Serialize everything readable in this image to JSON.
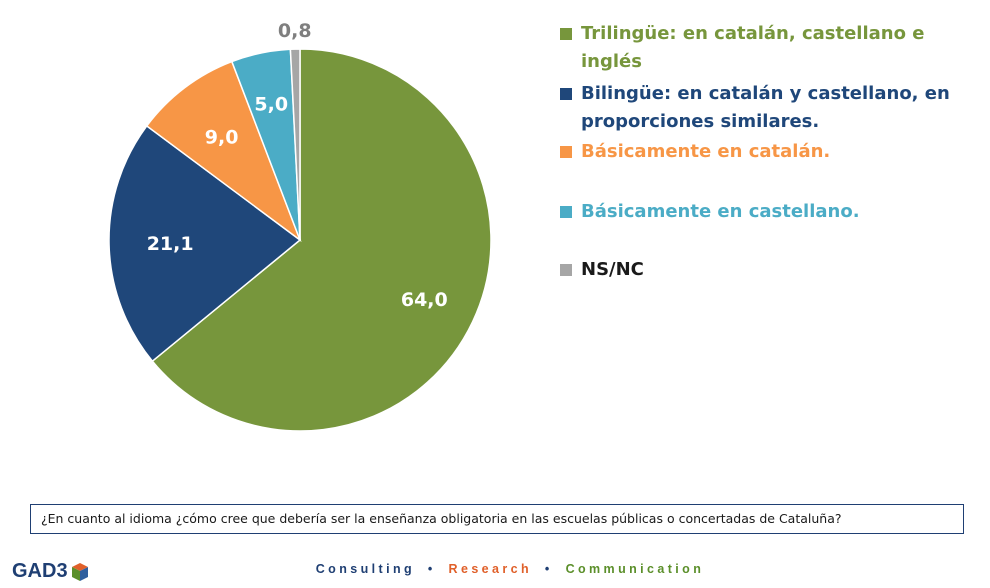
{
  "chart_data": {
    "type": "pie",
    "title": "",
    "categories": [
      "Trilingüe: en catalán, castellano e inglés",
      "Bilingüe: en catalán y castellano, en proporciones similares.",
      "Básicamente en catalán.",
      "Básicamente en castellano.",
      "NS/NC"
    ],
    "values": [
      64.0,
      21.1,
      9.0,
      5.0,
      0.8
    ],
    "value_labels": [
      "64,0",
      "21,1",
      "9,0",
      "5,0",
      "0,8"
    ],
    "colors": [
      "#77963c",
      "#1f477a",
      "#f79646",
      "#4bacc6",
      "#a6a6a6"
    ],
    "label_colors": [
      "#ffffff",
      "#ffffff",
      "#ffffff",
      "#ffffff",
      "#7f7f7f"
    ],
    "legend": {
      "placement": "right",
      "items": [
        {
          "lines": [
            "Trilingüe: en catalán, castellano e inglés"
          ],
          "color": "#77963c"
        },
        {
          "lines": [
            "Bilingüe: en catalán y castellano, en",
            "proporciones similares."
          ],
          "color": "#1f477a"
        },
        {
          "lines": [
            "Básicamente en catalán."
          ],
          "color": "#f79646"
        },
        {
          "lines": [
            "Básicamente en castellano."
          ],
          "color": "#4bacc6"
        },
        {
          "lines": [
            "NS/NC"
          ],
          "color": "#1a1a1a"
        }
      ]
    }
  },
  "question": "¿En cuanto al idioma ¿cómo cree que debería ser la enseñanza obligatoria en las escuelas públicas o concertadas de Cataluña?",
  "footer": {
    "logo_text": "GAD3",
    "tagline": {
      "consulting": "Consulting",
      "research": "Research",
      "communication": "Communication",
      "separator": "•"
    },
    "colors": {
      "consulting": "#1f3f73",
      "research": "#e0602a",
      "communication": "#5b8f2a"
    }
  }
}
